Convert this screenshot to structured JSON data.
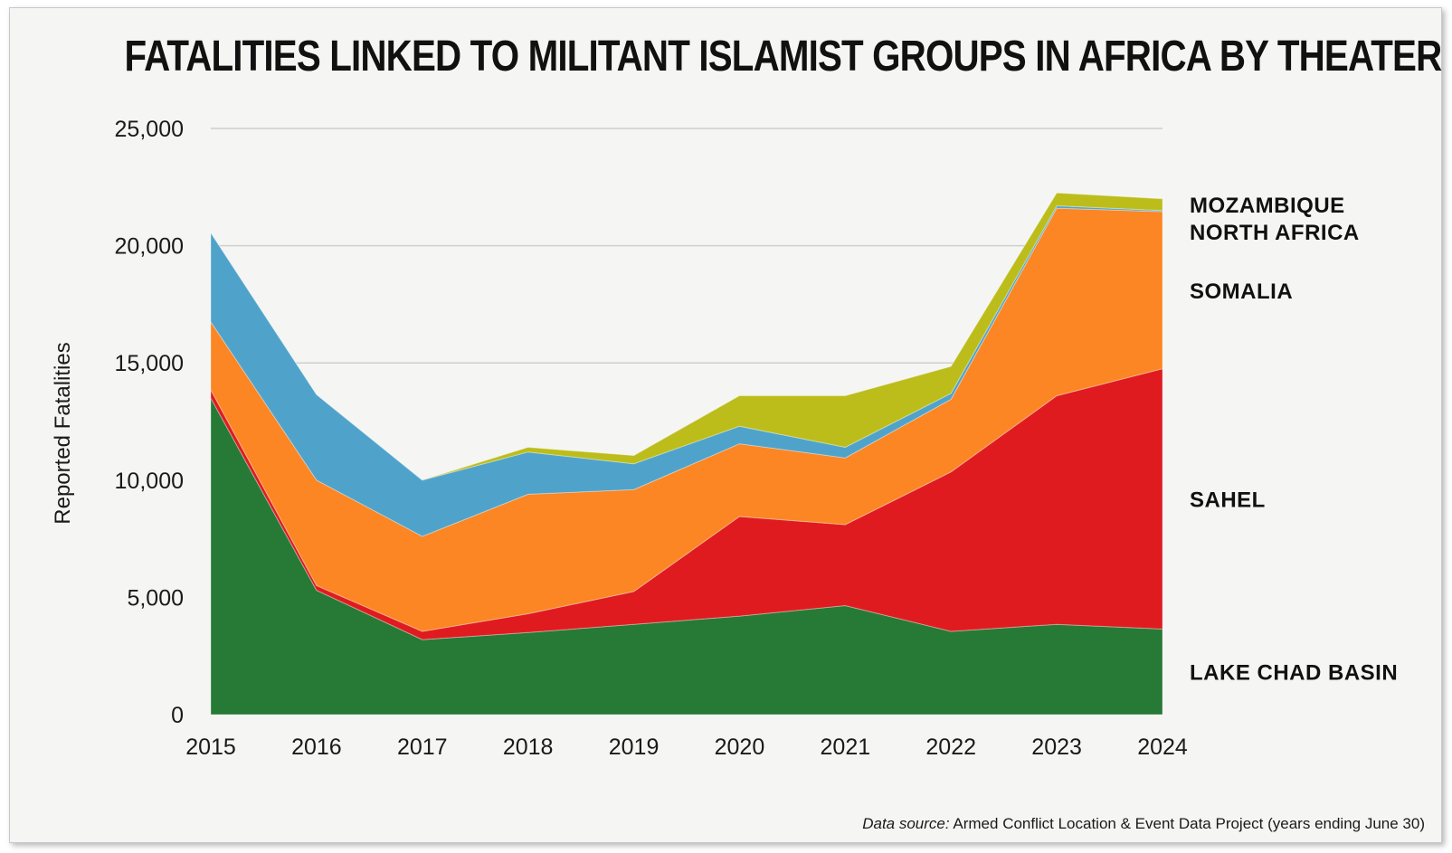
{
  "chart_data": {
    "type": "area",
    "stacked": true,
    "title": "FATALITIES LINKED TO MILITANT ISLAMIST GROUPS IN AFRICA BY THEATER",
    "ylabel": "Reported Fatalities",
    "xlabel": "",
    "x": [
      "2015",
      "2016",
      "2017",
      "2018",
      "2019",
      "2020",
      "2021",
      "2022",
      "2023",
      "2024"
    ],
    "yticks": [
      "0",
      "5,000",
      "10,000",
      "15,000",
      "20,000",
      "25,000"
    ],
    "ylim": [
      0,
      25000
    ],
    "grid": true,
    "legend": "direct labels, right",
    "series": [
      {
        "name": "LAKE CHAD BASIN",
        "color": "#267a35",
        "values": [
          13500,
          5300,
          3200,
          3500,
          3850,
          4200,
          4650,
          3550,
          3850,
          3650
        ]
      },
      {
        "name": "SAHEL",
        "color": "#e01b1f",
        "values": [
          350,
          200,
          350,
          800,
          1400,
          4250,
          3450,
          6800,
          9750,
          11100
        ]
      },
      {
        "name": "SOMALIA",
        "color": "#fb8623",
        "values": [
          2900,
          4500,
          4050,
          5100,
          4350,
          3100,
          2850,
          3100,
          8000,
          6700
        ]
      },
      {
        "name": "NORTH AFRICA",
        "color": "#4fa3cb",
        "values": [
          3800,
          3650,
          2400,
          1800,
          1100,
          750,
          450,
          250,
          100,
          50
        ]
      },
      {
        "name": "MOZAMBIQUE",
        "color": "#bcbd1a",
        "values": [
          0,
          0,
          0,
          200,
          350,
          1300,
          2200,
          1150,
          550,
          500
        ]
      }
    ]
  },
  "footer": {
    "source_prefix": "Data source:",
    "source_text": " Armed Conflict Location & Event Data Project (years ending June 30)"
  }
}
